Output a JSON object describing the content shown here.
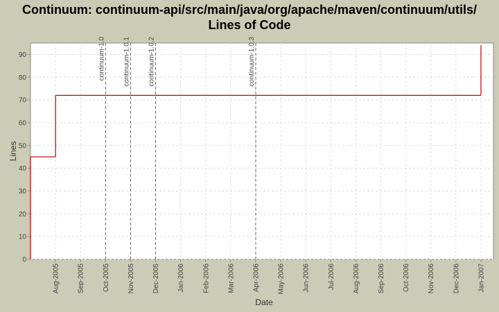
{
  "chart_data": {
    "type": "step",
    "title": [
      "Continuum: continuum-api/src/main/java/org/apache/maven/continuum/utils/",
      "Lines of Code"
    ],
    "x_label": "Date",
    "y_label": "Lines",
    "series": [
      {
        "name": "Lines",
        "color": "#b40000",
        "x": [
          "2005-07",
          "2005-08",
          "2007-01"
        ],
        "values": [
          45,
          72,
          94
        ]
      }
    ],
    "markers": [
      {
        "label": "continuum-1.0",
        "x": "2005-10"
      },
      {
        "label": "continuum-1.0.1",
        "x": "2005-11"
      },
      {
        "label": "continuum-1.0.2",
        "x": "2005-12"
      },
      {
        "label": "continuum-1.0.3",
        "x": "2006-04"
      }
    ],
    "xlim": [
      "2005-07",
      "2007-01"
    ],
    "xticks": [
      {
        "value": "2005-08",
        "label": "Aug-2005"
      },
      {
        "value": "2005-09",
        "label": "Sep-2005"
      },
      {
        "value": "2005-10",
        "label": "Oct-2005"
      },
      {
        "value": "2005-11",
        "label": "Nov-2005"
      },
      {
        "value": "2005-12",
        "label": "Dec-2005"
      },
      {
        "value": "2006-01",
        "label": "Jan-2006"
      },
      {
        "value": "2006-02",
        "label": "Feb-2006"
      },
      {
        "value": "2006-03",
        "label": "Mar-2006"
      },
      {
        "value": "2006-04",
        "label": "Apr-2006"
      },
      {
        "value": "2006-05",
        "label": "May-2006"
      },
      {
        "value": "2006-06",
        "label": "Jun-2006"
      },
      {
        "value": "2006-07",
        "label": "Jul-2006"
      },
      {
        "value": "2006-08",
        "label": "Aug-2006"
      },
      {
        "value": "2006-09",
        "label": "Sep-2006"
      },
      {
        "value": "2006-10",
        "label": "Oct-2006"
      },
      {
        "value": "2006-11",
        "label": "Nov-2006"
      },
      {
        "value": "2006-12",
        "label": "Dec-2006"
      },
      {
        "value": "2007-01",
        "label": "Jan-2007"
      }
    ],
    "ylim": [
      0,
      95
    ],
    "yticks": [
      0,
      10,
      20,
      30,
      40,
      50,
      60,
      70,
      80,
      90
    ],
    "grid": true
  }
}
